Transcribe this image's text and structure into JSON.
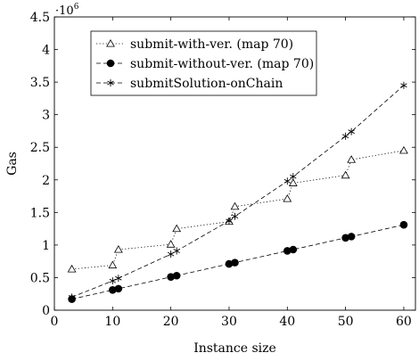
{
  "chart_data": {
    "type": "line",
    "title": "",
    "xlabel": "Instance size",
    "ylabel": "Gas",
    "y_multiplier": "·10",
    "y_multiplier_exp": "6",
    "xlim": [
      0,
      62
    ],
    "ylim": [
      0,
      4.5
    ],
    "x_ticks": [
      0,
      10,
      20,
      30,
      40,
      50,
      60
    ],
    "x_tick_labels": [
      "0",
      "10",
      "20",
      "30",
      "40",
      "50",
      "60"
    ],
    "y_ticks": [
      0,
      0.5,
      1,
      1.5,
      2,
      2.5,
      3,
      3.5,
      4,
      4.5
    ],
    "y_tick_labels": [
      "0",
      "0.5",
      "1",
      "1.5",
      "2",
      "2.5",
      "3",
      "3.5",
      "4",
      "4.5"
    ],
    "grid": false,
    "legend_position": "top-left",
    "series": [
      {
        "name": "submit-with-ver. (map 70)",
        "line_style": "dotted",
        "marker": "triangle-open",
        "x": [
          3,
          10,
          11,
          20,
          21,
          30,
          31,
          40,
          41,
          50,
          51,
          60
        ],
        "y": [
          0.63,
          0.69,
          0.93,
          1.01,
          1.25,
          1.36,
          1.59,
          1.71,
          1.95,
          2.07,
          2.31,
          2.45
        ]
      },
      {
        "name": "submit-without-ver. (map 70)",
        "line_style": "dashed",
        "marker": "circle-filled",
        "x": [
          3,
          10,
          11,
          20,
          21,
          30,
          31,
          40,
          41,
          50,
          51,
          60
        ],
        "y": [
          0.17,
          0.31,
          0.33,
          0.51,
          0.53,
          0.71,
          0.73,
          0.91,
          0.93,
          1.11,
          1.13,
          1.31
        ]
      },
      {
        "name": "submitSolution-onChain",
        "line_style": "dashed",
        "marker": "asterisk",
        "x": [
          3,
          10,
          11,
          20,
          21,
          30,
          31,
          40,
          41,
          50,
          51,
          60
        ],
        "y": [
          0.2,
          0.45,
          0.49,
          0.86,
          0.91,
          1.37,
          1.44,
          1.98,
          2.05,
          2.67,
          2.74,
          3.45
        ]
      }
    ]
  }
}
